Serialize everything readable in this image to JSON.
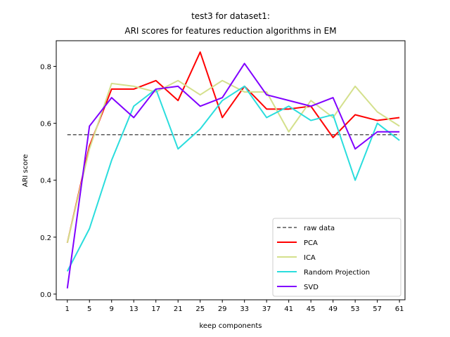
{
  "chart_data": {
    "type": "line",
    "title_lines": [
      "test3 for dataset1:",
      "ARI scores for features reduction algorithms in EM"
    ],
    "xlabel": "keep components",
    "ylabel": "ARI score",
    "x": [
      1,
      5,
      9,
      13,
      17,
      21,
      25,
      29,
      33,
      37,
      41,
      45,
      49,
      53,
      57,
      61
    ],
    "xlim": [
      -1.0,
      62.0
    ],
    "ylim": [
      -0.02,
      0.89
    ],
    "yticks": [
      0.0,
      0.2,
      0.4,
      0.6,
      0.8
    ],
    "ytick_labels": [
      "0.0",
      "0.2",
      "0.4",
      "0.6",
      "0.8"
    ],
    "baseline": {
      "name": "raw data",
      "value": 0.56,
      "color": "#000000"
    },
    "series": [
      {
        "name": "PCA",
        "color": "#ff0000",
        "values": [
          0.18,
          0.52,
          0.72,
          0.72,
          0.75,
          0.68,
          0.85,
          0.62,
          0.73,
          0.65,
          0.65,
          0.66,
          0.55,
          0.63,
          0.61,
          0.62
        ]
      },
      {
        "name": "ICA",
        "color": "#d4e08c",
        "values": [
          0.18,
          0.51,
          0.74,
          0.73,
          0.71,
          0.75,
          0.7,
          0.75,
          0.71,
          0.71,
          0.57,
          0.68,
          0.62,
          0.73,
          0.64,
          0.59
        ]
      },
      {
        "name": "Random Projection",
        "color": "#2adddd",
        "values": [
          0.08,
          0.23,
          0.47,
          0.66,
          0.72,
          0.51,
          0.58,
          0.68,
          0.73,
          0.62,
          0.66,
          0.61,
          0.63,
          0.4,
          0.6,
          0.54
        ]
      },
      {
        "name": "SVD",
        "color": "#8000ff",
        "values": [
          0.02,
          0.59,
          0.69,
          0.62,
          0.72,
          0.73,
          0.66,
          0.69,
          0.81,
          0.7,
          0.68,
          0.66,
          0.69,
          0.51,
          0.57,
          0.57
        ]
      }
    ],
    "legend_placement": "bottom-right",
    "grid": false
  }
}
